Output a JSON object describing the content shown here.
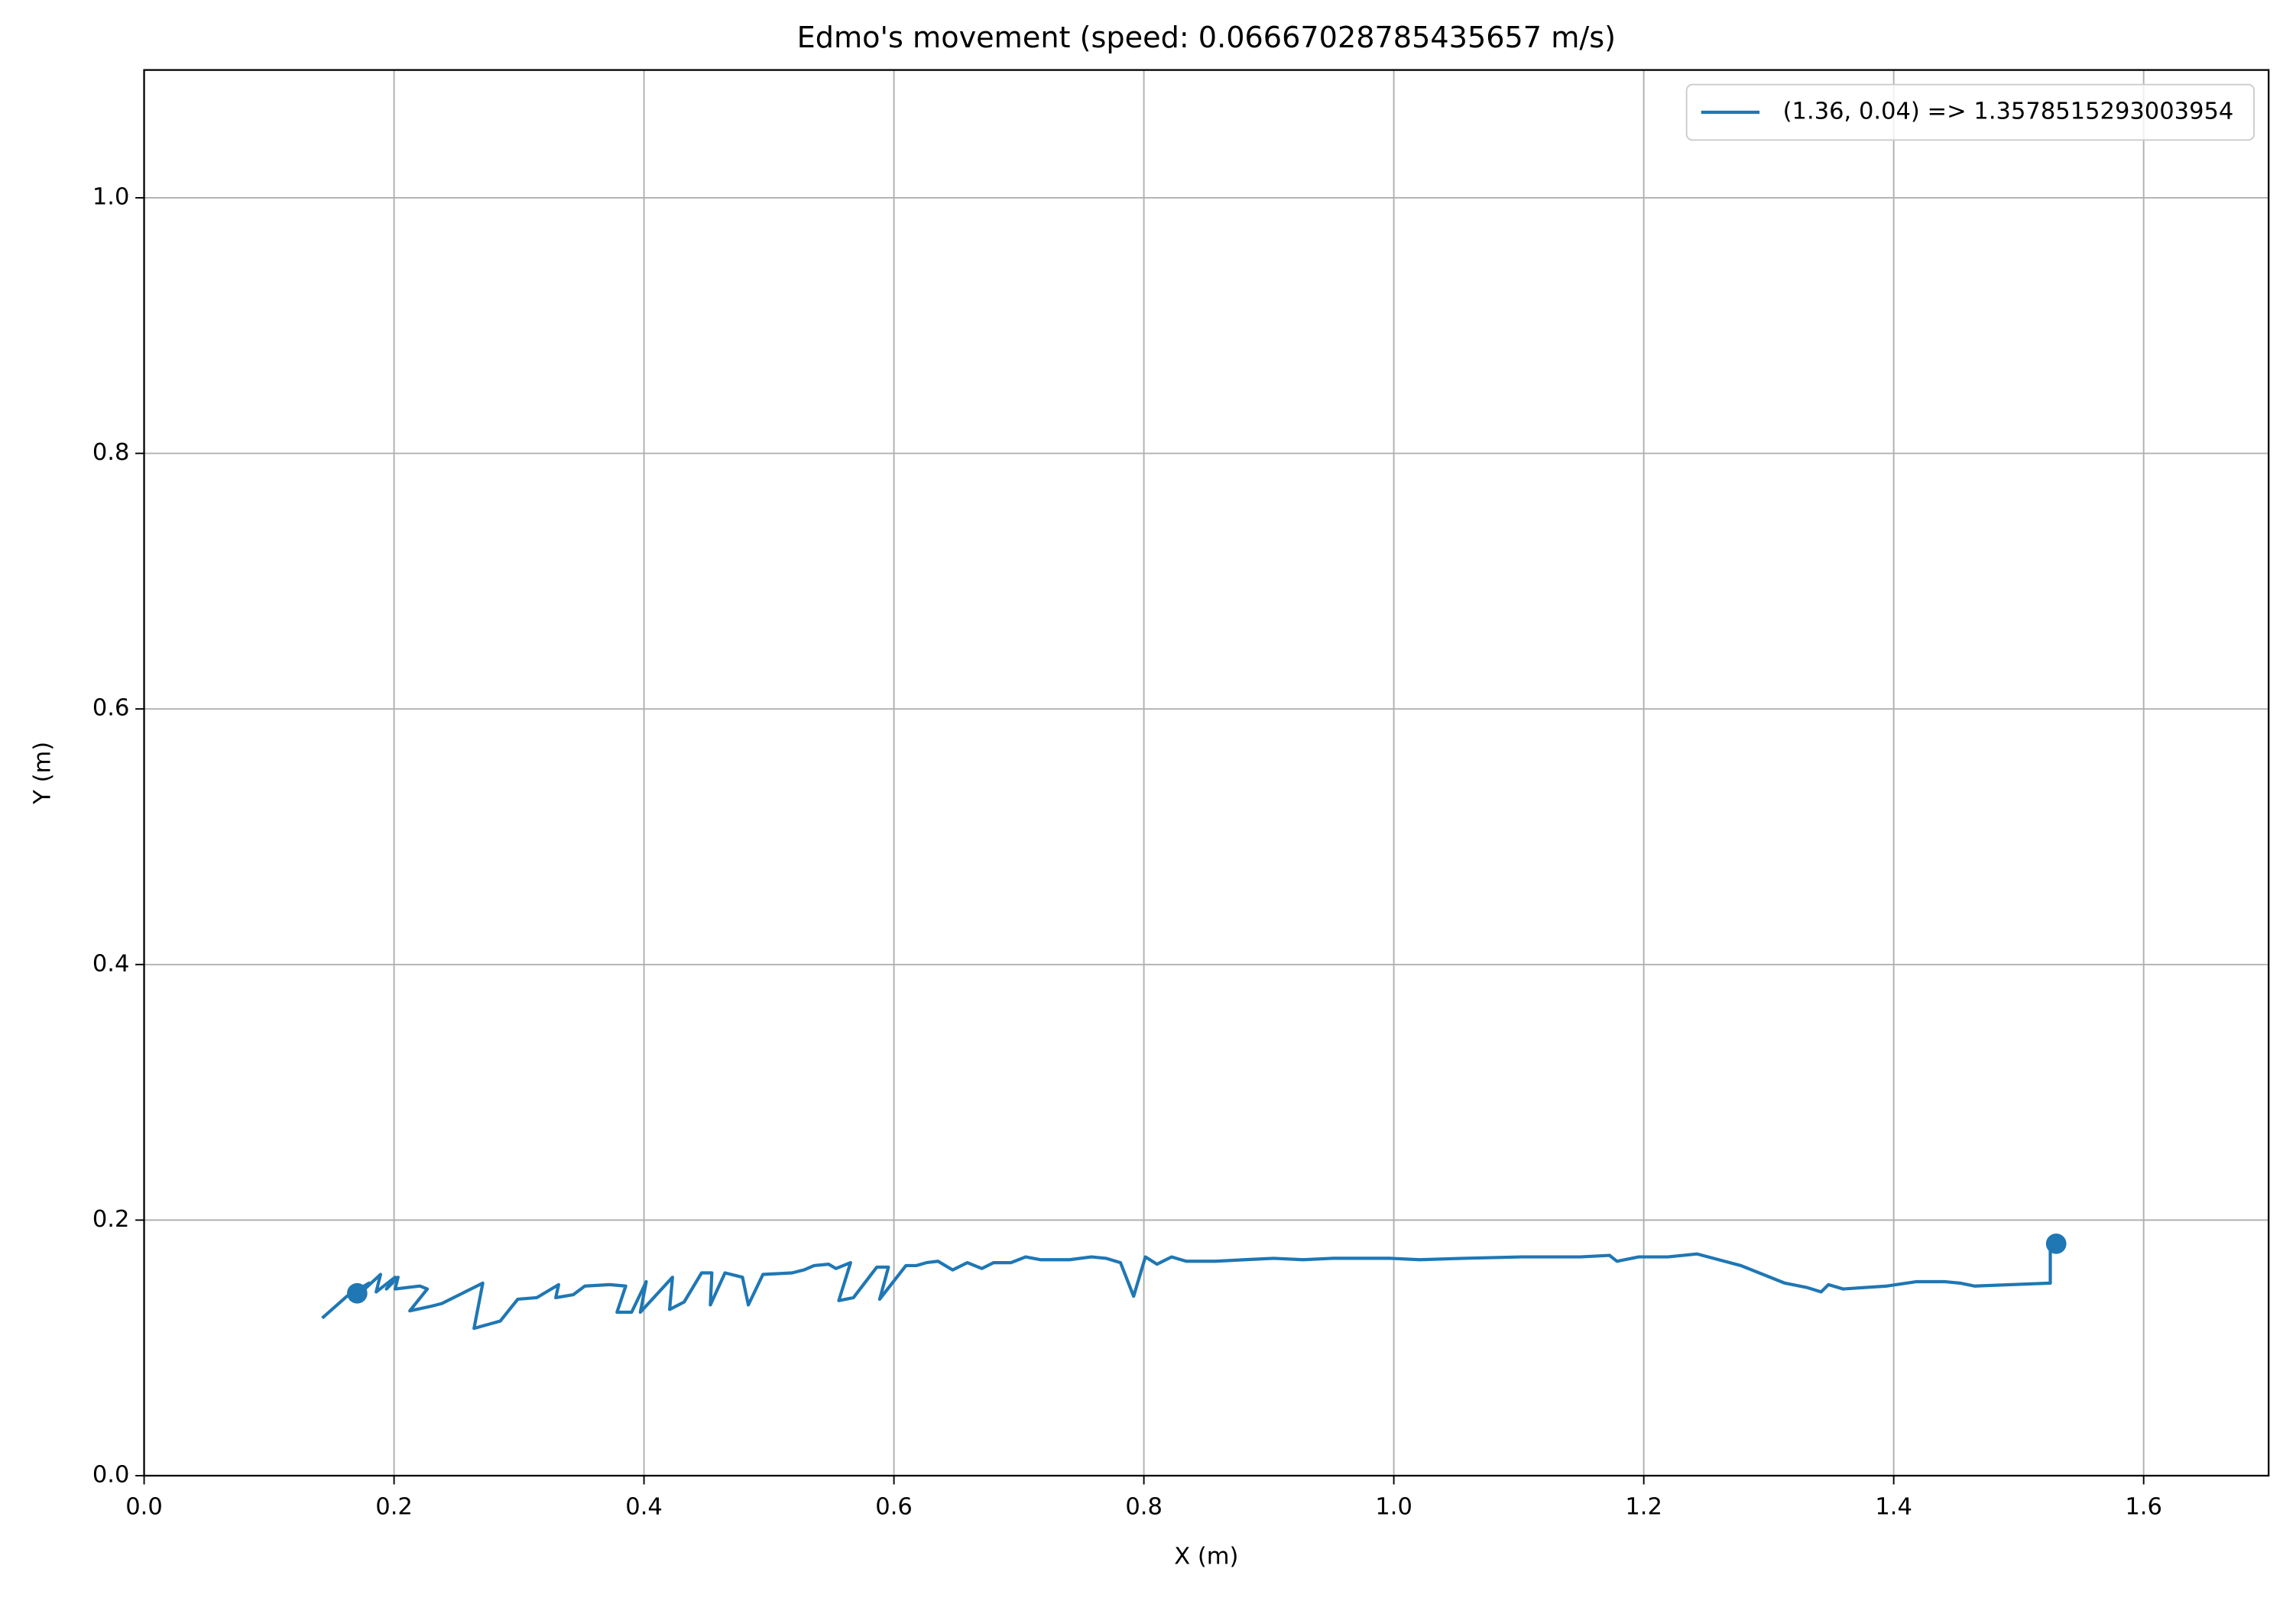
{
  "chart_data": {
    "type": "line",
    "title": "Edmo's movement (speed: 0.06667028785435657 m/s)",
    "x_label": "X (m)",
    "y_label": "Y (m)",
    "xlim": [
      0,
      1.7
    ],
    "ylim": [
      0,
      1.1
    ],
    "xticks": [
      {
        "value": 0,
        "label": "0.0"
      },
      0.2,
      0.4,
      0.6,
      0.8,
      {
        "value": 1,
        "label": "1.0"
      },
      1.2,
      1.4,
      1.6
    ],
    "yticks": [
      {
        "value": 0,
        "label": "0.0"
      },
      0.2,
      0.4,
      0.6,
      0.8,
      {
        "value": 1,
        "label": "1.0"
      }
    ],
    "grid": true,
    "legend": "upper right",
    "series": [
      {
        "name": "(1.36, 0.04) => 1.3578515293003954",
        "color": "#1f77b4",
        "x": [
          0.1425,
          0.1623,
          0.1799,
          0.174,
          0.1892,
          0.1857,
          0.2009,
          0.1939,
          0.2032,
          0.2009,
          0.2207,
          0.2266,
          0.2126,
          0.2289,
          0.2382,
          0.271,
          0.264,
          0.285,
          0.299,
          0.3142,
          0.3317,
          0.3294,
          0.3434,
          0.3527,
          0.3726,
          0.3854,
          0.3784,
          0.3901,
          0.4018,
          0.3971,
          0.4228,
          0.4205,
          0.4321,
          0.4461,
          0.4543,
          0.4531,
          0.4648,
          0.4788,
          0.4835,
          0.4952,
          0.5185,
          0.5279,
          0.5361,
          0.5477,
          0.5536,
          0.5653,
          0.5559,
          0.5676,
          0.5863,
          0.5956,
          0.5886,
          0.6096,
          0.6178,
          0.626,
          0.6353,
          0.647,
          0.6587,
          0.6704,
          0.6797,
          0.6937,
          0.7054,
          0.7171,
          0.7405,
          0.758,
          0.7697,
          0.7813,
          0.7918,
          0.8012,
          0.8105,
          0.8222,
          0.8339,
          0.8572,
          0.8806,
          0.904,
          0.9273,
          0.9507,
          0.9741,
          0.9974,
          1.0208,
          1.0558,
          1.1025,
          1.1493,
          1.1726,
          1.1785,
          1.196,
          1.2193,
          1.2427,
          1.2777,
          1.3128,
          1.3303,
          1.3419,
          1.3478,
          1.3595,
          1.3945,
          1.4179,
          1.4412,
          1.4529,
          1.4646,
          1.5253,
          1.5253
        ],
        "values": [
          0.1233,
          0.1404,
          0.1507,
          0.1438,
          0.1575,
          0.1438,
          0.1553,
          0.1461,
          0.1553,
          0.1461,
          0.1484,
          0.1461,
          0.129,
          0.1324,
          0.1347,
          0.1507,
          0.1153,
          0.121,
          0.1381,
          0.1393,
          0.1495,
          0.1393,
          0.1416,
          0.1484,
          0.1495,
          0.1484,
          0.1279,
          0.1279,
          0.1518,
          0.1279,
          0.1553,
          0.1301,
          0.1359,
          0.1587,
          0.1587,
          0.1336,
          0.1587,
          0.1553,
          0.1336,
          0.1575,
          0.1587,
          0.161,
          0.1644,
          0.1655,
          0.1621,
          0.1667,
          0.137,
          0.1393,
          0.1632,
          0.1632,
          0.1381,
          0.1644,
          0.1644,
          0.1667,
          0.1678,
          0.161,
          0.1667,
          0.1621,
          0.1667,
          0.1667,
          0.1712,
          0.169,
          0.169,
          0.1712,
          0.1701,
          0.1667,
          0.1404,
          0.1712,
          0.1655,
          0.1712,
          0.1678,
          0.1678,
          0.169,
          0.1701,
          0.169,
          0.1701,
          0.1701,
          0.1701,
          0.169,
          0.1701,
          0.1712,
          0.1712,
          0.1724,
          0.1678,
          0.1712,
          0.1712,
          0.1735,
          0.1644,
          0.1507,
          0.1473,
          0.1438,
          0.1495,
          0.1461,
          0.1484,
          0.1518,
          0.1518,
          0.1507,
          0.1484,
          0.1507,
          0.1815
        ]
      }
    ],
    "markers": {
      "color": "#1f77b4",
      "x": [
        0.1705,
        1.53
      ],
      "values": [
        0.1427,
        0.1815
      ]
    }
  }
}
